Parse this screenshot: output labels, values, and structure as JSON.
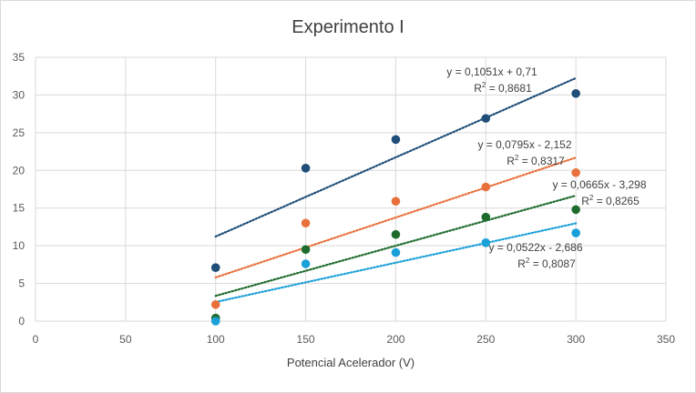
{
  "chart_data": {
    "type": "scatter",
    "title": "Experimento I",
    "xlabel": "Potencial Acelerador (V)",
    "ylabel": "",
    "xlim": [
      0,
      350
    ],
    "ylim": [
      0,
      35
    ],
    "x_ticks": [
      0,
      50,
      100,
      150,
      200,
      250,
      300,
      350
    ],
    "y_ticks": [
      0,
      5,
      10,
      15,
      20,
      25,
      30,
      35
    ],
    "grid": true,
    "legend": "none",
    "series": [
      {
        "color": "#1f4e79",
        "x": [
          100,
          150,
          200,
          250,
          300
        ],
        "y": [
          7.1,
          20.3,
          24.1,
          26.9,
          30.2
        ],
        "trendline": {
          "slope": 0.1051,
          "intercept": 0.71,
          "equation": "y = 0,1051x + 0,71",
          "r2_label": "R",
          "r2_value": " = 0,8681"
        }
      },
      {
        "color": "#e8703a",
        "x": [
          100,
          150,
          200,
          250,
          300
        ],
        "y": [
          2.2,
          13.0,
          15.9,
          17.8,
          19.7
        ],
        "trendline": {
          "slope": 0.0795,
          "intercept": -2.152,
          "equation": "y = 0,0795x - 2,152",
          "r2_label": "R",
          "r2_value": " = 0,8317"
        }
      },
      {
        "color": "#1e6b2e",
        "x": [
          100,
          150,
          200,
          250,
          300
        ],
        "y": [
          0.4,
          9.5,
          11.5,
          13.8,
          14.8
        ],
        "trendline": {
          "slope": 0.0665,
          "intercept": -3.298,
          "equation": "y = 0,0665x - 3,298",
          "r2_label": "R",
          "r2_value": " = 0,8265"
        }
      },
      {
        "color": "#1aa0d8",
        "x": [
          100,
          150,
          200,
          250,
          300
        ],
        "y": [
          0.0,
          7.6,
          9.1,
          10.4,
          11.7
        ],
        "trendline": {
          "slope": 0.0522,
          "intercept": -2.686,
          "equation": "y = 0,0522x - 2,686",
          "r2_label": "R",
          "r2_value": " = 0,8087"
        }
      }
    ]
  }
}
